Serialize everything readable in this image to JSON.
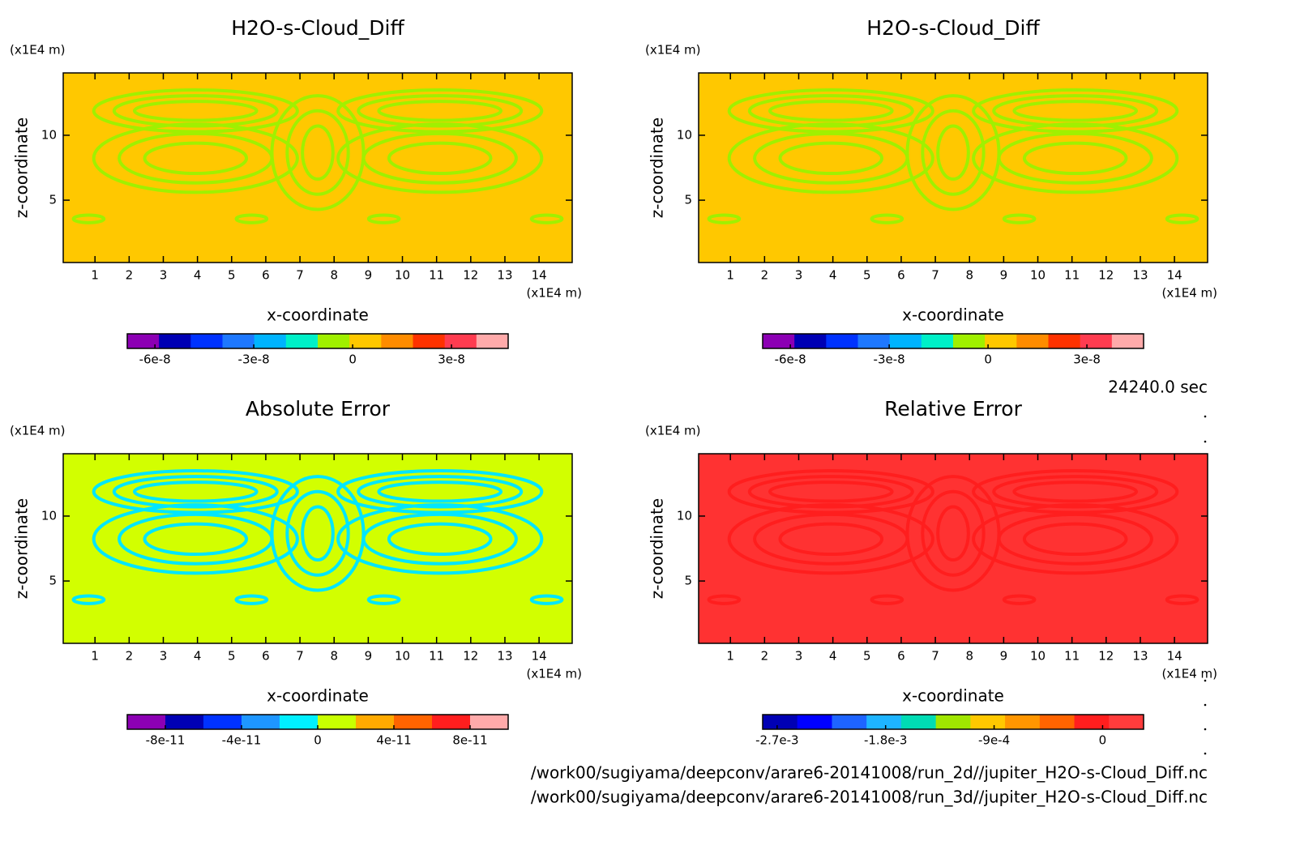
{
  "chart_data": [
    {
      "type": "contour",
      "title": "H2O-s-Cloud_Diff",
      "x_label": "x-coordinate",
      "y_label": "z-coordinate",
      "x_unit": "(x1E4 m)",
      "y_unit": "(x1E4 m)",
      "xlim": [
        0.07,
        14.97
      ],
      "ylim": [
        0.2,
        14.8
      ],
      "xticks": [
        1,
        2,
        3,
        4,
        5,
        6,
        7,
        8,
        9,
        10,
        11,
        12,
        13,
        14
      ],
      "yticks": [
        5,
        10
      ],
      "field_color": "#ffc800",
      "pattern_color": "#a0f000",
      "colorbar": {
        "colors": [
          "#8c00b4",
          "#0000b4",
          "#0032ff",
          "#1e78ff",
          "#00b4ff",
          "#00f0c8",
          "#a0f000",
          "#ffc800",
          "#ff8c00",
          "#ff3200",
          "#ff3c50",
          "#ffaaaa"
        ],
        "clim": [
          -6.84e-08,
          4.72e-08
        ],
        "ticks": [
          -6e-08,
          -3e-08,
          0,
          3e-08
        ]
      }
    },
    {
      "type": "contour",
      "title": "H2O-s-Cloud_Diff",
      "x_label": "x-coordinate",
      "y_label": "z-coordinate",
      "x_unit": "(x1E4 m)",
      "y_unit": "(x1E4 m)",
      "xlim": [
        0.07,
        14.97
      ],
      "ylim": [
        0.2,
        14.8
      ],
      "xticks": [
        1,
        2,
        3,
        4,
        5,
        6,
        7,
        8,
        9,
        10,
        11,
        12,
        13,
        14
      ],
      "yticks": [
        5,
        10
      ],
      "field_color": "#ffc800",
      "pattern_color": "#a0f000",
      "colorbar": {
        "colors": [
          "#8c00b4",
          "#0000b4",
          "#0032ff",
          "#1e78ff",
          "#00b4ff",
          "#00f0c8",
          "#a0f000",
          "#ffc800",
          "#ff8c00",
          "#ff3200",
          "#ff3c50",
          "#ffaaaa"
        ],
        "clim": [
          -6.84e-08,
          4.72e-08
        ],
        "ticks": [
          -6e-08,
          -3e-08,
          0,
          3e-08
        ]
      }
    },
    {
      "type": "contour",
      "title": "Absolute Error",
      "x_label": "x-coordinate",
      "y_label": "z-coordinate",
      "x_unit": "(x1E4 m)",
      "y_unit": "(x1E4 m)",
      "xlim": [
        0.07,
        14.97
      ],
      "ylim": [
        0.2,
        14.8
      ],
      "xticks": [
        1,
        2,
        3,
        4,
        5,
        6,
        7,
        8,
        9,
        10,
        11,
        12,
        13,
        14
      ],
      "yticks": [
        5,
        10
      ],
      "field_color": "#d2ff00",
      "pattern_color": "#00e6ff",
      "colorbar": {
        "colors": [
          "#8c00b4",
          "#0000b4",
          "#0032ff",
          "#1e96ff",
          "#00f0ff",
          "#c8ff00",
          "#ffaa00",
          "#ff6400",
          "#ff1e1e",
          "#ffaaaa"
        ],
        "clim": [
          -1e-10,
          1e-10
        ],
        "ticks": [
          -8e-11,
          -4e-11,
          0,
          4e-11,
          8e-11
        ]
      }
    },
    {
      "type": "contour",
      "title": "Relative Error",
      "x_label": "x-coordinate",
      "y_label": "z-coordinate",
      "x_unit": "(x1E4 m)",
      "y_unit": "(x1E4 m)",
      "xlim": [
        0.07,
        14.97
      ],
      "ylim": [
        0.2,
        14.8
      ],
      "xticks": [
        1,
        2,
        3,
        4,
        5,
        6,
        7,
        8,
        9,
        10,
        11,
        12,
        13,
        14
      ],
      "yticks": [
        5,
        10
      ],
      "field_color": "#ff3232",
      "pattern_color": "#ff1e1e",
      "colorbar": {
        "colors": [
          "#0000b4",
          "#0000ff",
          "#1e64ff",
          "#1eb4ff",
          "#00dcb4",
          "#a0e600",
          "#ffc800",
          "#ff9600",
          "#ff6400",
          "#ff1e1e",
          "#ff3c3c"
        ],
        "clim": [
          -0.00282,
          0.00034
        ],
        "ticks": [
          {
            "value": -0.0027,
            "label": "-2.7e-3"
          },
          {
            "value": -0.0018,
            "label": "-1.8e-3"
          },
          {
            "value": -0.0009,
            "label": "-9e-4"
          },
          0
        ]
      }
    }
  ],
  "annotations": {
    "time": "24240.0 sec",
    "files": [
      "/work00/sugiyama/deepconv/arare6-20141008/run_2d//jupiter_H2O-s-Cloud_Diff.nc",
      "/work00/sugiyama/deepconv/arare6-20141008/run_3d//jupiter_H2O-s-Cloud_Diff.nc"
    ]
  }
}
